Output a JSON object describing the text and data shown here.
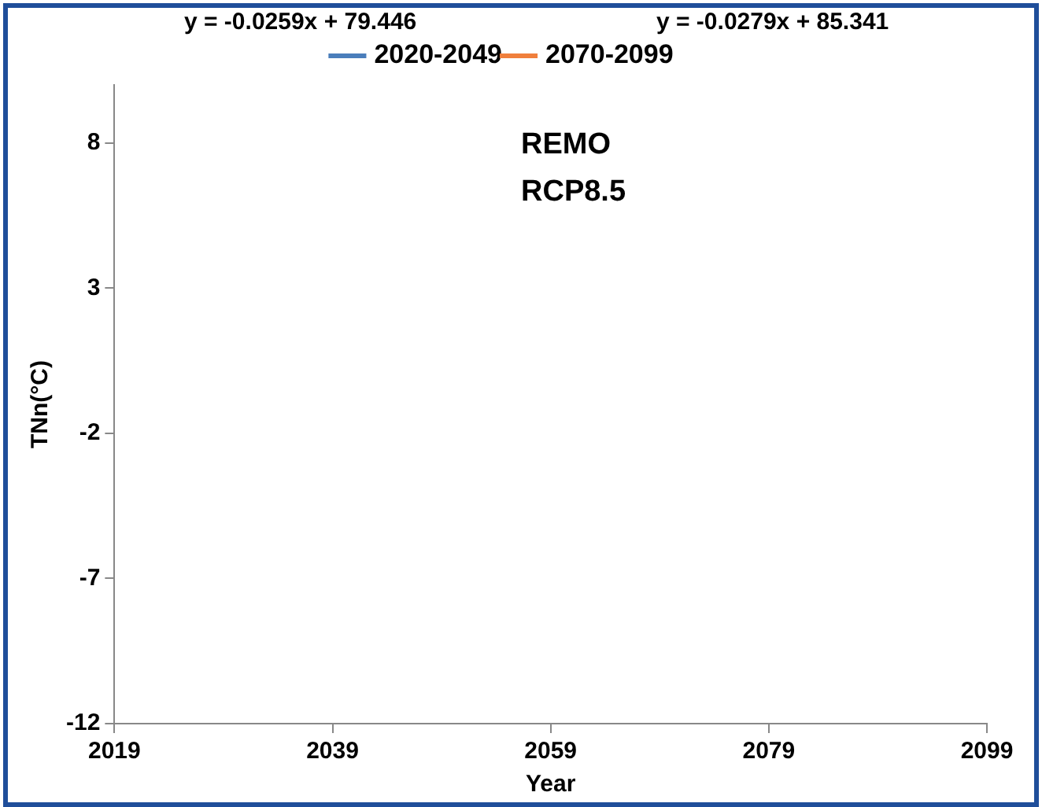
{
  "chart_data": {
    "type": "line",
    "xlabel": "Year",
    "ylabel": "TNn(°C)",
    "annotations": [
      "y = -0.0259x + 79.446",
      "y = -0.0279x + 85.341",
      "REMO",
      "RCP8.5"
    ],
    "series": [
      {
        "name": "2020-2049",
        "color": "#4a7ebb",
        "values": [
          null,
          null,
          null,
          null,
          null
        ]
      },
      {
        "name": "2070-2099",
        "color": "#f07f3c",
        "values": [
          null,
          null,
          null,
          null,
          null
        ]
      }
    ],
    "categories": [
      "2019",
      "2039",
      "2059",
      "2079",
      "2099"
    ],
    "ylim": [
      -12,
      10
    ],
    "yticks": [
      -12,
      -7,
      -2,
      3,
      8
    ],
    "grid": false,
    "legend": "top"
  }
}
